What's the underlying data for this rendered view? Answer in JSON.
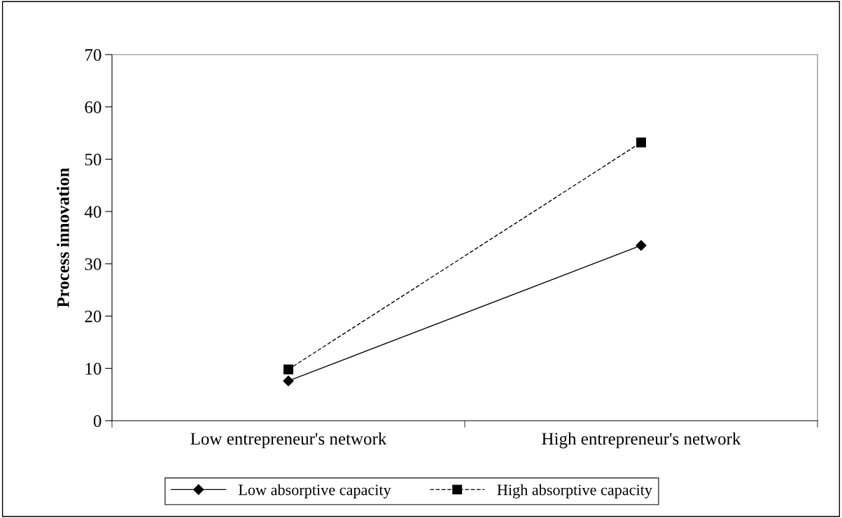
{
  "chart_data": {
    "type": "line",
    "ylabel": "Process innovation",
    "categories": [
      "Low entrepreneur's network",
      "High entrepreneur's network"
    ],
    "series": [
      {
        "name": "Low absorptive capacity",
        "color": "#000000",
        "values": [
          7.6,
          33.5
        ],
        "marker": "diamond",
        "line_style": "solid"
      },
      {
        "name": "High absorptive capacity",
        "color": "#000000",
        "values": [
          9.8,
          53.2
        ],
        "marker": "square",
        "line_style": "dashed"
      }
    ],
    "ylim": [
      0,
      70
    ],
    "yticks": [
      0,
      10,
      20,
      30,
      40,
      50,
      60,
      70
    ],
    "grid": false,
    "legend": "bottom"
  }
}
